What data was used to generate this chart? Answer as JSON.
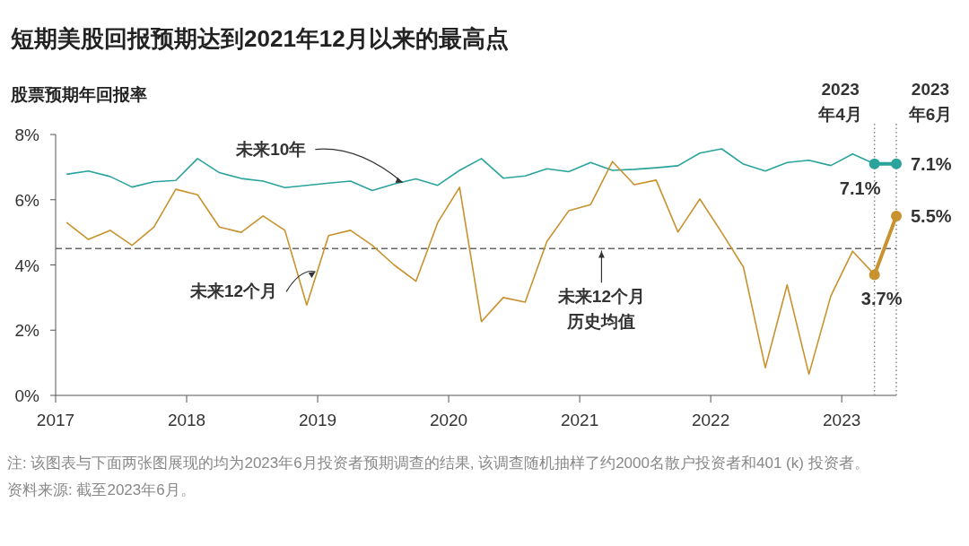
{
  "chart_data": {
    "type": "line",
    "title": "短期美股回报预期达到2021年12月以来的最高点",
    "ylabel": "股票预期年回报率",
    "x": [
      "2017-02",
      "2017-04",
      "2017-06",
      "2017-08",
      "2017-10",
      "2017-12",
      "2018-02",
      "2018-04",
      "2018-06",
      "2018-08",
      "2018-10",
      "2018-12",
      "2019-02",
      "2019-04",
      "2019-06",
      "2019-08",
      "2019-10",
      "2019-12",
      "2020-02",
      "2020-04",
      "2020-06",
      "2020-08",
      "2020-10",
      "2020-12",
      "2021-02",
      "2021-04",
      "2021-06",
      "2021-08",
      "2021-10",
      "2021-12",
      "2022-02",
      "2022-04",
      "2022-06",
      "2022-08",
      "2022-10",
      "2022-12",
      "2023-02",
      "2023-04",
      "2023-06"
    ],
    "series": [
      {
        "color": "#2aa39c",
        "values": [
          6.78,
          6.88,
          6.71,
          6.39,
          6.55,
          6.59,
          7.26,
          6.83,
          6.65,
          6.57,
          6.37,
          6.44,
          6.51,
          6.57,
          6.28,
          6.48,
          6.64,
          6.44,
          6.9,
          7.26,
          6.66,
          6.73,
          6.95,
          6.86,
          7.14,
          6.9,
          6.93,
          6.98,
          7.04,
          7.43,
          7.56,
          7.09,
          6.88,
          7.14,
          7.21,
          7.05,
          7.4,
          7.1,
          7.1
        ],
        "value_labels": [
          null,
          null,
          null,
          null,
          null,
          null,
          null,
          null,
          null,
          null,
          null,
          null,
          null,
          null,
          null,
          null,
          null,
          null,
          null,
          null,
          null,
          null,
          null,
          null,
          null,
          null,
          null,
          null,
          null,
          null,
          null,
          null,
          null,
          null,
          null,
          null,
          null,
          "7.1%",
          "7.1%"
        ]
      },
      {
        "color": "#c8922e",
        "values": [
          5.3,
          4.78,
          5.06,
          4.6,
          5.16,
          6.32,
          6.15,
          5.16,
          5.0,
          5.5,
          5.06,
          2.77,
          4.9,
          5.06,
          4.6,
          4.0,
          3.5,
          5.3,
          6.38,
          2.26,
          3.0,
          2.86,
          4.72,
          5.66,
          5.85,
          7.17,
          6.46,
          6.6,
          5.01,
          6.02,
          5.0,
          3.93,
          0.85,
          3.39,
          0.65,
          3.05,
          4.42,
          3.7,
          5.5
        ],
        "value_labels": [
          null,
          null,
          null,
          null,
          null,
          null,
          null,
          null,
          null,
          null,
          null,
          null,
          null,
          null,
          null,
          null,
          null,
          null,
          null,
          null,
          null,
          null,
          null,
          null,
          null,
          null,
          null,
          null,
          null,
          null,
          null,
          null,
          null,
          null,
          null,
          null,
          null,
          "3.7%",
          "5.5%"
        ]
      }
    ],
    "xlim": [
      "2017-01",
      "2023-06"
    ],
    "xticks": [
      "2017",
      "2018",
      "2019",
      "2020",
      "2021",
      "2022",
      "2023"
    ],
    "ylim": [
      0,
      8
    ],
    "yticks": [
      {
        "value": 0,
        "label": "0%"
      },
      {
        "value": 2,
        "label": "2%"
      },
      {
        "value": 4,
        "label": "4%"
      },
      {
        "value": 6,
        "label": "6%"
      },
      {
        "value": 8,
        "label": "8%"
      }
    ],
    "ref_lines": [
      {
        "axis": "y",
        "value": 4.5,
        "color": "#666666",
        "line_style": "dashed"
      },
      {
        "axis": "x",
        "value": "2023-04",
        "label": "2023\n年4月",
        "color": "#888888",
        "line_style": "dotted"
      },
      {
        "axis": "x",
        "value": "2023-06",
        "label": "2023\n年6月",
        "color": "#888888",
        "line_style": "dotted"
      }
    ],
    "annotations": [
      {
        "text": "未来10年",
        "x": "2019-09",
        "y": 6.5
      },
      {
        "text": "未来12个月",
        "x": "2019-01",
        "y": 3.84
      },
      {
        "text": "未来12个月历史均值",
        "x": "2021-03",
        "y": 4.5
      },
      "注: 该图表与下面两张图展现的均为2023年6月投资者预期调查的结果, 该调查随机抽样了约2000名散户投资者和401 (k) 投资者。",
      "资料来源: 截至2023年6月。"
    ]
  }
}
